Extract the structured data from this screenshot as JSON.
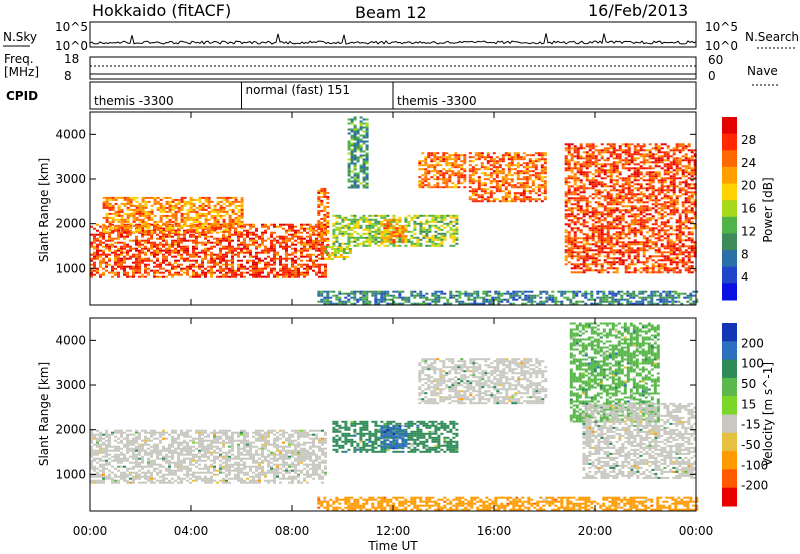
{
  "header": {
    "station": "Hokkaido (fitACF)",
    "beam": "Beam 12",
    "date": "16/Feb/2013"
  },
  "summary": {
    "nsky_label": "N.Sky",
    "nsky_ticks": [
      "10^5",
      "10^0"
    ],
    "nsearch_label": "N.Search",
    "nsearch_ticks": [
      "10^5",
      "10^0"
    ],
    "freq_label_1": "Freq.",
    "freq_label_2": "[MHz]",
    "freq_ticks": [
      "18",
      "8"
    ],
    "nave_label": "Nave",
    "nave_ticks": [
      "60",
      "0"
    ],
    "cpid_label": "CPID",
    "modes": [
      {
        "label": "themis -3300",
        "start_hour": 0
      },
      {
        "label": "normal (fast) 151",
        "start_hour": 6
      },
      {
        "label": "themis -3300",
        "start_hour": 12
      }
    ]
  },
  "axes": {
    "ylabel": "Slant Range [km]",
    "xlabel": "Time UT",
    "y_ticks": [
      "1000",
      "2000",
      "3000",
      "4000"
    ],
    "x_ticks": [
      "00:00",
      "04:00",
      "08:00",
      "12:00",
      "16:00",
      "20:00",
      "00:00"
    ]
  },
  "chart_data": [
    {
      "type": "heatmap",
      "panel": "power",
      "xlabel": "Time UT",
      "ylabel": "Slant Range [km]",
      "xlim": [
        0,
        24
      ],
      "ylim": [
        180,
        4500
      ],
      "colorbar": {
        "label": "Power [dB]",
        "ticks": [
          "28",
          "24",
          "20",
          "16",
          "12",
          "8",
          "4"
        ],
        "colors": [
          "#e50000",
          "#ff2800",
          "#ff6a00",
          "#ffa000",
          "#ffd200",
          "#a6d81e",
          "#4fb34a",
          "#3d8a5a",
          "#2b6fa8",
          "#1f46c8",
          "#0a10e0"
        ]
      },
      "regions": [
        {
          "t0": 0.0,
          "t1": 9.3,
          "r0": 800,
          "r1": 2000,
          "level": 26
        },
        {
          "t0": 0.5,
          "t1": 6.0,
          "r0": 1800,
          "r1": 2600,
          "level": 22
        },
        {
          "t0": 9.0,
          "t1": 9.4,
          "r0": 1300,
          "r1": 2800,
          "level": 24
        },
        {
          "t0": 9.3,
          "t1": 10.3,
          "r0": 1200,
          "r1": 1500,
          "level": 16
        },
        {
          "t0": 9.6,
          "t1": 14.5,
          "r0": 1500,
          "r1": 2200,
          "level": 14
        },
        {
          "t0": 11.5,
          "t1": 12.5,
          "r0": 1600,
          "r1": 2100,
          "level": 22
        },
        {
          "t0": 10.2,
          "t1": 11.0,
          "r0": 2800,
          "r1": 4400,
          "level": 10
        },
        {
          "t0": 13.0,
          "t1": 14.8,
          "r0": 2800,
          "r1": 3600,
          "level": 24
        },
        {
          "t0": 15.0,
          "t1": 18.0,
          "r0": 2500,
          "r1": 3600,
          "level": 24
        },
        {
          "t0": 18.8,
          "t1": 24.0,
          "r0": 900,
          "r1": 3800,
          "level": 26
        },
        {
          "t0": 9.0,
          "t1": 24.0,
          "r0": 200,
          "r1": 500,
          "level": 8
        }
      ]
    },
    {
      "type": "heatmap",
      "panel": "velocity",
      "xlabel": "Time UT",
      "ylabel": "Slant Range [km]",
      "xlim": [
        0,
        24
      ],
      "ylim": [
        180,
        4500
      ],
      "colorbar": {
        "label": "Velocity [m s^-1]",
        "ticks": [
          "200",
          "100",
          "50",
          "15",
          "-15",
          "-50",
          "-100",
          "-200"
        ],
        "colors": [
          "#1436b5",
          "#2f6fbf",
          "#2e8b57",
          "#5bb84c",
          "#7cd62a",
          "#c8c8c0",
          "#e6c040",
          "#ff9a00",
          "#ff5a00",
          "#e80000"
        ]
      },
      "regions": [
        {
          "t0": 0.0,
          "t1": 9.3,
          "r0": 800,
          "r1": 2000,
          "velocity": 0
        },
        {
          "t0": 9.6,
          "t1": 14.5,
          "r0": 1500,
          "r1": 2200,
          "velocity": 40
        },
        {
          "t0": 11.5,
          "t1": 12.5,
          "r0": 1600,
          "r1": 2100,
          "velocity": 150
        },
        {
          "t0": 13.0,
          "t1": 18.0,
          "r0": 2600,
          "r1": 3600,
          "velocity": 0
        },
        {
          "t0": 19.0,
          "t1": 22.5,
          "r0": 2200,
          "r1": 4400,
          "velocity": 30
        },
        {
          "t0": 19.5,
          "t1": 24.0,
          "r0": 900,
          "r1": 2600,
          "velocity": 0
        },
        {
          "t0": 9.0,
          "t1": 24.0,
          "r0": 200,
          "r1": 500,
          "velocity": -60
        }
      ]
    }
  ]
}
